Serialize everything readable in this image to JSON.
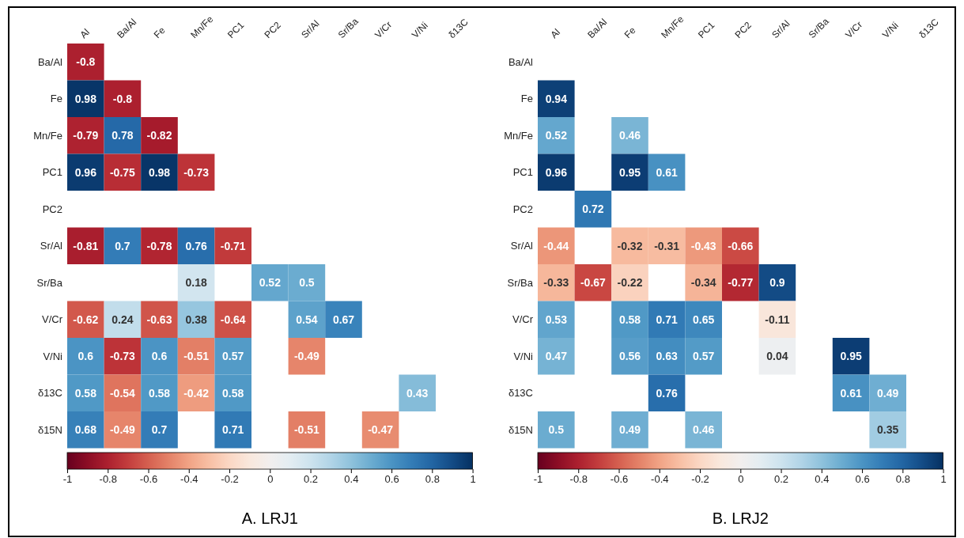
{
  "chart_data": [
    {
      "type": "heatmap",
      "title": "A. LRJ1",
      "categories": [
        "Al",
        "Ba/Al",
        "Fe",
        "Mn/Fe",
        "PC1",
        "PC2",
        "Sr/Al",
        "Sr/Ba",
        "V/Cr",
        "V/Ni",
        "δ13C"
      ],
      "y_categories": [
        "Ba/Al",
        "Fe",
        "Mn/Fe",
        "PC1",
        "PC2",
        "Sr/Al",
        "Sr/Ba",
        "V/Cr",
        "V/Ni",
        "δ13C",
        "δ15N"
      ],
      "cells": [
        [
          -0.8,
          null,
          null,
          null,
          null,
          null,
          null,
          null,
          null,
          null,
          null
        ],
        [
          0.98,
          -0.8,
          null,
          null,
          null,
          null,
          null,
          null,
          null,
          null,
          null
        ],
        [
          -0.79,
          0.78,
          -0.82,
          null,
          null,
          null,
          null,
          null,
          null,
          null,
          null
        ],
        [
          0.96,
          -0.75,
          0.98,
          -0.73,
          null,
          null,
          null,
          null,
          null,
          null,
          null
        ],
        [
          null,
          null,
          null,
          null,
          null,
          null,
          null,
          null,
          null,
          null,
          null
        ],
        [
          -0.81,
          0.7,
          -0.78,
          0.76,
          -0.71,
          null,
          null,
          null,
          null,
          null,
          null
        ],
        [
          null,
          null,
          null,
          0.18,
          null,
          0.52,
          0.5,
          null,
          null,
          null,
          null
        ],
        [
          -0.62,
          0.24,
          -0.63,
          0.38,
          -0.64,
          null,
          0.54,
          0.67,
          null,
          null,
          null
        ],
        [
          0.6,
          -0.73,
          0.6,
          -0.51,
          0.57,
          null,
          -0.49,
          null,
          null,
          null,
          null
        ],
        [
          0.58,
          -0.54,
          0.58,
          -0.42,
          0.58,
          null,
          null,
          null,
          null,
          0.43,
          null
        ],
        [
          0.68,
          -0.49,
          0.7,
          null,
          0.71,
          null,
          -0.51,
          null,
          -0.47,
          null,
          null
        ]
      ],
      "clim": [
        -1,
        1
      ],
      "cticks": [
        -1,
        -0.8,
        -0.6,
        -0.4,
        -0.2,
        0,
        0.2,
        0.4,
        0.6,
        0.8,
        1
      ],
      "data_labels": true
    },
    {
      "type": "heatmap",
      "title": "B. LRJ2",
      "categories": [
        "Al",
        "Ba/Al",
        "Fe",
        "Mn/Fe",
        "PC1",
        "PC2",
        "Sr/Al",
        "Sr/Ba",
        "V/Cr",
        "V/Ni",
        "δ13C"
      ],
      "y_categories": [
        "Ba/Al",
        "Fe",
        "Mn/Fe",
        "PC1",
        "PC2",
        "Sr/Al",
        "Sr/Ba",
        "V/Cr",
        "V/Ni",
        "δ13C",
        "δ15N"
      ],
      "cells": [
        [
          null,
          null,
          null,
          null,
          null,
          null,
          null,
          null,
          null,
          null,
          null
        ],
        [
          0.94,
          null,
          null,
          null,
          null,
          null,
          null,
          null,
          null,
          null,
          null
        ],
        [
          0.52,
          null,
          0.46,
          null,
          null,
          null,
          null,
          null,
          null,
          null,
          null
        ],
        [
          0.96,
          null,
          0.95,
          0.61,
          null,
          null,
          null,
          null,
          null,
          null,
          null
        ],
        [
          null,
          0.72,
          null,
          null,
          null,
          null,
          null,
          null,
          null,
          null,
          null
        ],
        [
          -0.44,
          null,
          -0.32,
          -0.31,
          -0.43,
          -0.66,
          null,
          null,
          null,
          null,
          null
        ],
        [
          -0.33,
          -0.67,
          -0.22,
          null,
          -0.34,
          -0.77,
          0.9,
          null,
          null,
          null,
          null
        ],
        [
          0.53,
          null,
          0.58,
          0.71,
          0.65,
          null,
          -0.11,
          null,
          null,
          null,
          null
        ],
        [
          0.47,
          null,
          0.56,
          0.63,
          0.57,
          null,
          0.04,
          null,
          0.95,
          null,
          null
        ],
        [
          null,
          null,
          null,
          0.76,
          null,
          null,
          null,
          null,
          0.61,
          0.49,
          null
        ],
        [
          0.5,
          null,
          0.49,
          null,
          0.46,
          null,
          null,
          null,
          null,
          0.35,
          null
        ]
      ],
      "clim": [
        -1,
        1
      ],
      "cticks": [
        -1,
        -0.8,
        -0.6,
        -0.4,
        -0.2,
        0,
        0.2,
        0.4,
        0.6,
        0.8,
        1
      ],
      "data_labels": true
    }
  ]
}
